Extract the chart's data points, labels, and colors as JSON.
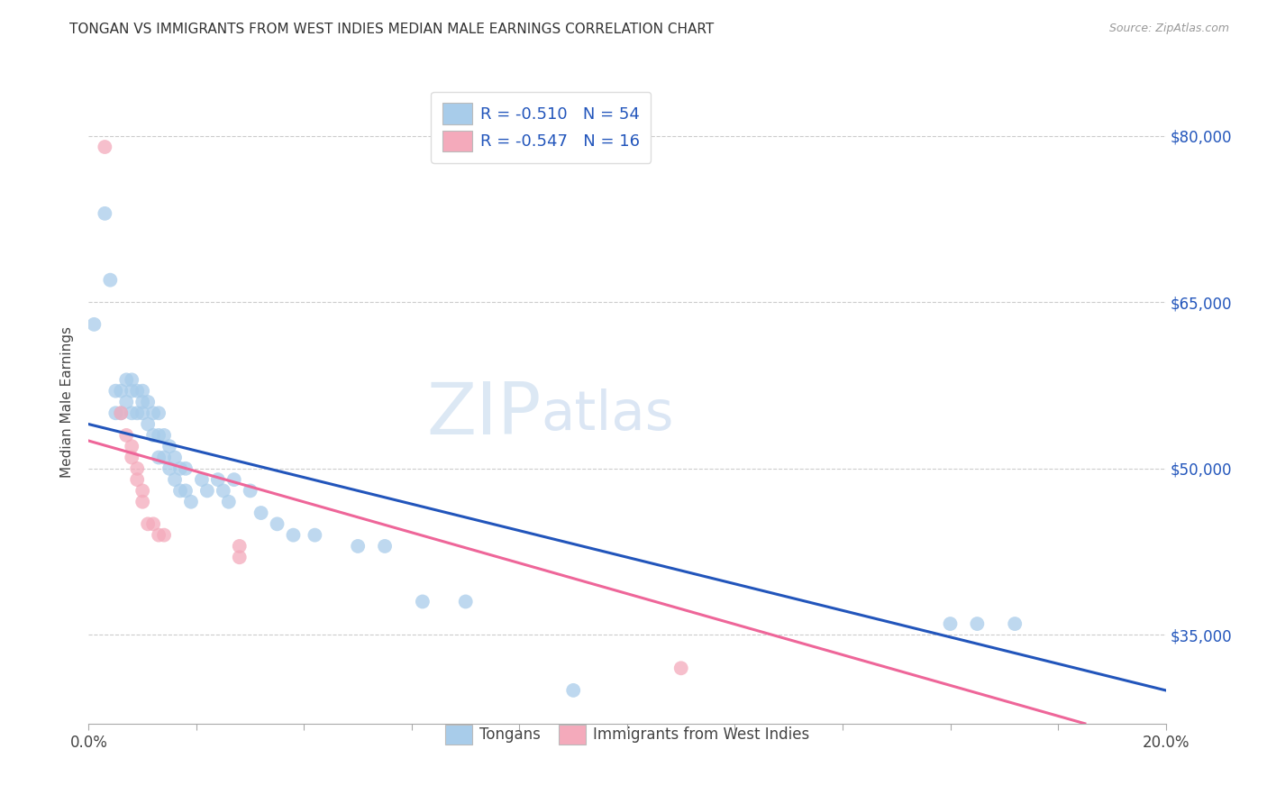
{
  "title": "TONGAN VS IMMIGRANTS FROM WEST INDIES MEDIAN MALE EARNINGS CORRELATION CHART",
  "source": "Source: ZipAtlas.com",
  "ylabel": "Median Male Earnings",
  "watermark": "ZIPatlas",
  "xlim": [
    0.0,
    0.2
  ],
  "ylim": [
    27000,
    85000
  ],
  "ytick_positions": [
    35000,
    50000,
    65000,
    80000
  ],
  "ytick_labels": [
    "$35,000",
    "$50,000",
    "$65,000",
    "$80,000"
  ],
  "blue_color": "#A8CCEA",
  "pink_color": "#F4AABB",
  "line_blue": "#2255BB",
  "line_pink": "#EE6699",
  "r_blue": "-0.510",
  "n_blue": "54",
  "r_pink": "-0.547",
  "n_pink": "16",
  "legend1_label": "Tongans",
  "legend2_label": "Immigrants from West Indies",
  "blue_scatter_x": [
    0.001,
    0.003,
    0.004,
    0.005,
    0.005,
    0.006,
    0.006,
    0.007,
    0.007,
    0.008,
    0.008,
    0.008,
    0.009,
    0.009,
    0.01,
    0.01,
    0.01,
    0.011,
    0.011,
    0.012,
    0.012,
    0.013,
    0.013,
    0.013,
    0.014,
    0.014,
    0.015,
    0.015,
    0.016,
    0.016,
    0.017,
    0.017,
    0.018,
    0.018,
    0.019,
    0.021,
    0.022,
    0.024,
    0.025,
    0.026,
    0.027,
    0.03,
    0.032,
    0.035,
    0.038,
    0.042,
    0.05,
    0.055,
    0.062,
    0.07,
    0.09,
    0.16,
    0.165,
    0.172
  ],
  "blue_scatter_y": [
    63000,
    73000,
    67000,
    55000,
    57000,
    55000,
    57000,
    56000,
    58000,
    55000,
    57000,
    58000,
    55000,
    57000,
    56000,
    55000,
    57000,
    56000,
    54000,
    55000,
    53000,
    55000,
    53000,
    51000,
    53000,
    51000,
    52000,
    50000,
    49000,
    51000,
    48000,
    50000,
    48000,
    50000,
    47000,
    49000,
    48000,
    49000,
    48000,
    47000,
    49000,
    48000,
    46000,
    45000,
    44000,
    44000,
    43000,
    43000,
    38000,
    38000,
    30000,
    36000,
    36000,
    36000
  ],
  "pink_scatter_x": [
    0.003,
    0.006,
    0.007,
    0.008,
    0.008,
    0.009,
    0.009,
    0.01,
    0.01,
    0.011,
    0.012,
    0.013,
    0.014,
    0.028,
    0.11,
    0.028
  ],
  "pink_scatter_y": [
    79000,
    55000,
    53000,
    51000,
    52000,
    50000,
    49000,
    48000,
    47000,
    45000,
    45000,
    44000,
    44000,
    43000,
    32000,
    42000
  ],
  "blue_line_x0": 0.0,
  "blue_line_x1": 0.2,
  "blue_line_y0": 54000,
  "blue_line_y1": 30000,
  "pink_line_x0": 0.0,
  "pink_line_x1": 0.185,
  "pink_line_y0": 52500,
  "pink_line_y1": 27000
}
